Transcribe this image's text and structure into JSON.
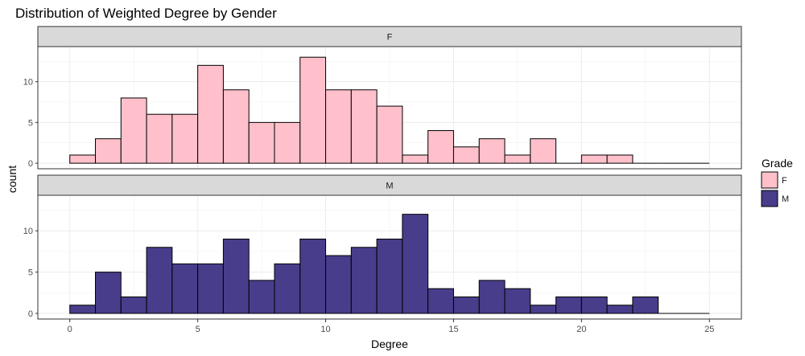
{
  "chart_data": {
    "type": "bar",
    "title": "Distribution of Weighted Degree by Gender",
    "xlabel": "Degree",
    "ylabel": "count",
    "xlim": [
      -1.25,
      26.25
    ],
    "ylim": [
      -0.68,
      14.3
    ],
    "x_ticks": [
      0,
      5,
      10,
      15,
      20,
      25
    ],
    "y_ticks": [
      0,
      5,
      10
    ],
    "bin_width": 1,
    "bin_starts": [
      0,
      1,
      2,
      3,
      4,
      5,
      6,
      7,
      8,
      9,
      10,
      11,
      12,
      13,
      14,
      15,
      16,
      17,
      18,
      19,
      20,
      21,
      22,
      23,
      24
    ],
    "grid": true,
    "legend": {
      "title": "Grade",
      "position": "right",
      "entries": [
        {
          "label": "F",
          "color": "#FFC0CB"
        },
        {
          "label": "M",
          "color": "#483D8B"
        }
      ]
    },
    "panels": [
      {
        "strip_label": "F",
        "color": "#FFC0CB",
        "values": [
          1,
          3,
          8,
          6,
          6,
          12,
          9,
          5,
          5,
          13,
          9,
          9,
          7,
          1,
          4,
          2,
          3,
          1,
          3,
          0,
          1,
          1,
          0,
          0,
          0
        ]
      },
      {
        "strip_label": "M",
        "color": "#483D8B",
        "values": [
          1,
          5,
          2,
          8,
          6,
          6,
          9,
          4,
          6,
          9,
          7,
          8,
          9,
          12,
          3,
          2,
          4,
          3,
          1,
          2,
          2,
          1,
          2,
          0,
          0
        ]
      }
    ]
  }
}
